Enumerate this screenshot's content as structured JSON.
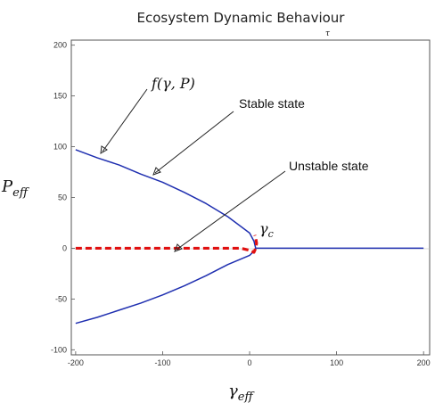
{
  "chart_data": {
    "type": "line",
    "title": "Ecosystem Dynamic Behaviour",
    "xlabel": "γ",
    "xlabel_sub": "eff",
    "ylabel": "P",
    "ylabel_sub": "eff",
    "xlim": [
      -205,
      207
    ],
    "ylim": [
      -105,
      205
    ],
    "x_ticks": [
      -200,
      -100,
      0,
      100,
      200
    ],
    "y_ticks": [
      -100,
      -50,
      0,
      50,
      100,
      150,
      200
    ],
    "grid": false,
    "series": [
      {
        "name": "Stable state",
        "color": "#1f2fb0",
        "style": "solid",
        "x": [
          -200,
          -175,
          -150,
          -125,
          -100,
          -75,
          -50,
          -25,
          0,
          5,
          7,
          8
        ],
        "y": [
          97,
          89,
          82,
          73,
          65,
          55,
          44,
          31,
          15,
          7,
          0,
          0
        ]
      },
      {
        "name": "",
        "color": "#1f2fb0",
        "style": "solid",
        "x": [
          -200,
          -175,
          -150,
          -125,
          -100,
          -75,
          -50,
          -25,
          0,
          5,
          7
        ],
        "y": [
          -74,
          -68,
          -61,
          -54,
          -46,
          -37,
          -27,
          -16,
          -7,
          -3,
          0
        ]
      },
      {
        "name": "",
        "color": "#1f2fb0",
        "style": "solid",
        "x": [
          8,
          200
        ],
        "y": [
          0,
          0
        ]
      },
      {
        "name": "Unstable state",
        "color": "#e01010",
        "style": "dashed",
        "x": [
          -200,
          -100,
          -10,
          0,
          5,
          7,
          8,
          7,
          6
        ],
        "y": [
          0,
          0,
          0,
          -2,
          -4,
          0,
          5,
          10,
          13
        ]
      }
    ],
    "annotations": [
      {
        "text": "f(γ, P)",
        "point": [
          -175,
          88
        ]
      },
      {
        "text": "Stable state",
        "point": [
          -110,
          74
        ]
      },
      {
        "text": "Unstable state",
        "point": [
          -85,
          -1
        ]
      },
      {
        "text": "γ",
        "sub": "c",
        "point": [
          8,
          10
        ]
      }
    ]
  }
}
